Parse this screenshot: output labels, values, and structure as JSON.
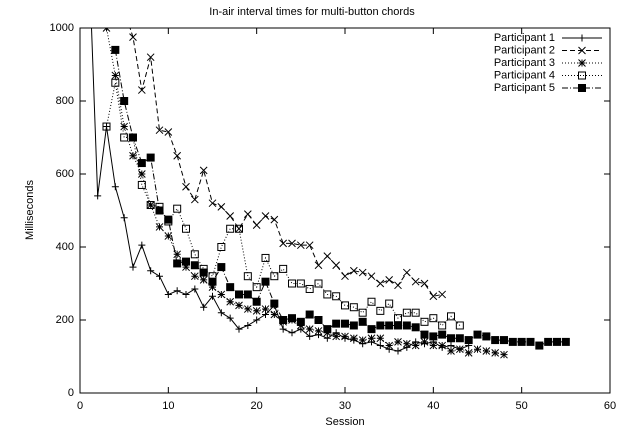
{
  "chart_data": {
    "type": "line",
    "title": "In-air interval times for multi-button chords",
    "xlabel": "Session",
    "ylabel": "Milliseconds",
    "xlim": [
      0,
      60
    ],
    "xticks": [
      0,
      10,
      20,
      30,
      40,
      50,
      60
    ],
    "ylim": [
      0,
      1000
    ],
    "yticks": [
      0,
      200,
      400,
      600,
      800,
      1000
    ],
    "legend": "top-right",
    "series": [
      {
        "name": "Participant 1",
        "color": "#000000",
        "marker": "plus",
        "dash": "solid",
        "x": [
          1,
          2,
          3,
          4,
          5,
          6,
          7,
          8,
          9,
          10,
          11,
          12,
          13,
          14,
          15,
          16,
          17,
          18,
          19,
          20,
          21,
          22,
          23,
          24,
          25,
          26,
          27,
          28,
          29,
          30,
          31,
          32,
          33,
          34,
          35,
          36,
          37,
          38,
          39,
          40,
          41,
          42,
          43,
          44
        ],
        "values": [
          1200,
          540,
          730,
          565,
          480,
          345,
          405,
          335,
          320,
          270,
          280,
          270,
          285,
          235,
          265,
          220,
          205,
          175,
          185,
          200,
          215,
          240,
          175,
          165,
          175,
          155,
          160,
          150,
          165,
          150,
          145,
          135,
          140,
          130,
          120,
          115,
          125,
          140,
          135,
          140,
          125,
          130,
          120,
          130
        ]
      },
      {
        "name": "Participant 2",
        "color": "#000000",
        "marker": "cross",
        "dash": "dashed",
        "x": [
          5,
          6,
          7,
          8,
          9,
          10,
          11,
          12,
          13,
          14,
          15,
          16,
          17,
          18,
          19,
          20,
          21,
          22,
          23,
          24,
          25,
          26,
          27,
          28,
          29,
          30,
          31,
          32,
          33,
          34,
          35,
          36,
          37,
          38,
          39,
          40,
          41
        ],
        "values": [
          1050,
          975,
          830,
          920,
          720,
          715,
          650,
          565,
          530,
          610,
          520,
          510,
          485,
          450,
          490,
          460,
          485,
          475,
          410,
          410,
          405,
          405,
          350,
          375,
          350,
          320,
          335,
          330,
          320,
          300,
          310,
          295,
          330,
          305,
          300,
          265,
          270
        ]
      },
      {
        "name": "Participant 3",
        "color": "#000000",
        "marker": "star",
        "dash": "dotted",
        "x": [
          2,
          3,
          4,
          5,
          6,
          7,
          8,
          9,
          10,
          11,
          12,
          13,
          14,
          15,
          16,
          17,
          18,
          19,
          20,
          21,
          22,
          23,
          24,
          25,
          26,
          27,
          28,
          29,
          30,
          31,
          32,
          33,
          34,
          35,
          36,
          37,
          38,
          39,
          40,
          41,
          42,
          43,
          44,
          45,
          46,
          47,
          48
        ],
        "values": [
          1100,
          1000,
          870,
          730,
          650,
          600,
          515,
          455,
          430,
          380,
          345,
          320,
          310,
          290,
          270,
          250,
          240,
          230,
          225,
          230,
          215,
          195,
          200,
          185,
          175,
          170,
          165,
          155,
          155,
          150,
          145,
          150,
          150,
          130,
          140,
          135,
          130,
          140,
          130,
          130,
          115,
          120,
          110,
          120,
          115,
          110,
          105
        ]
      },
      {
        "name": "Participant 4",
        "color": "#000000",
        "marker": "square",
        "dash": "dotted",
        "x": [
          3,
          4,
          5,
          6,
          7,
          8,
          9,
          10,
          11,
          12,
          13,
          14,
          15,
          16,
          17,
          18,
          19,
          20,
          21,
          22,
          23,
          24,
          25,
          26,
          27,
          28,
          29,
          30,
          31,
          32,
          33,
          34,
          35,
          36,
          37,
          38,
          39,
          40,
          41,
          42,
          43
        ],
        "values": [
          730,
          850,
          700,
          700,
          570,
          515,
          510,
          470,
          505,
          450,
          380,
          340,
          320,
          400,
          450,
          450,
          320,
          290,
          370,
          320,
          340,
          300,
          300,
          285,
          300,
          270,
          265,
          240,
          235,
          220,
          250,
          225,
          245,
          205,
          220,
          220,
          195,
          205,
          185,
          210,
          185
        ]
      },
      {
        "name": "Participant 5",
        "color": "#000000",
        "marker": "filled-square",
        "dash": "dashdot",
        "x": [
          4,
          5,
          6,
          7,
          8,
          9,
          10,
          11,
          12,
          13,
          14,
          15,
          16,
          17,
          18,
          19,
          20,
          21,
          22,
          23,
          24,
          25,
          26,
          27,
          28,
          29,
          30,
          31,
          32,
          33,
          34,
          35,
          36,
          37,
          38,
          39,
          40,
          41,
          42,
          43,
          44,
          45,
          46,
          47,
          48,
          49,
          50,
          51,
          52,
          53,
          54,
          55
        ],
        "values": [
          940,
          800,
          700,
          630,
          645,
          500,
          475,
          355,
          360,
          350,
          330,
          305,
          345,
          290,
          270,
          270,
          250,
          305,
          245,
          200,
          205,
          195,
          215,
          200,
          175,
          190,
          190,
          185,
          195,
          175,
          185,
          185,
          185,
          185,
          180,
          160,
          155,
          160,
          150,
          150,
          145,
          160,
          155,
          145,
          145,
          140,
          140,
          140,
          130,
          140,
          140,
          140
        ]
      }
    ]
  }
}
